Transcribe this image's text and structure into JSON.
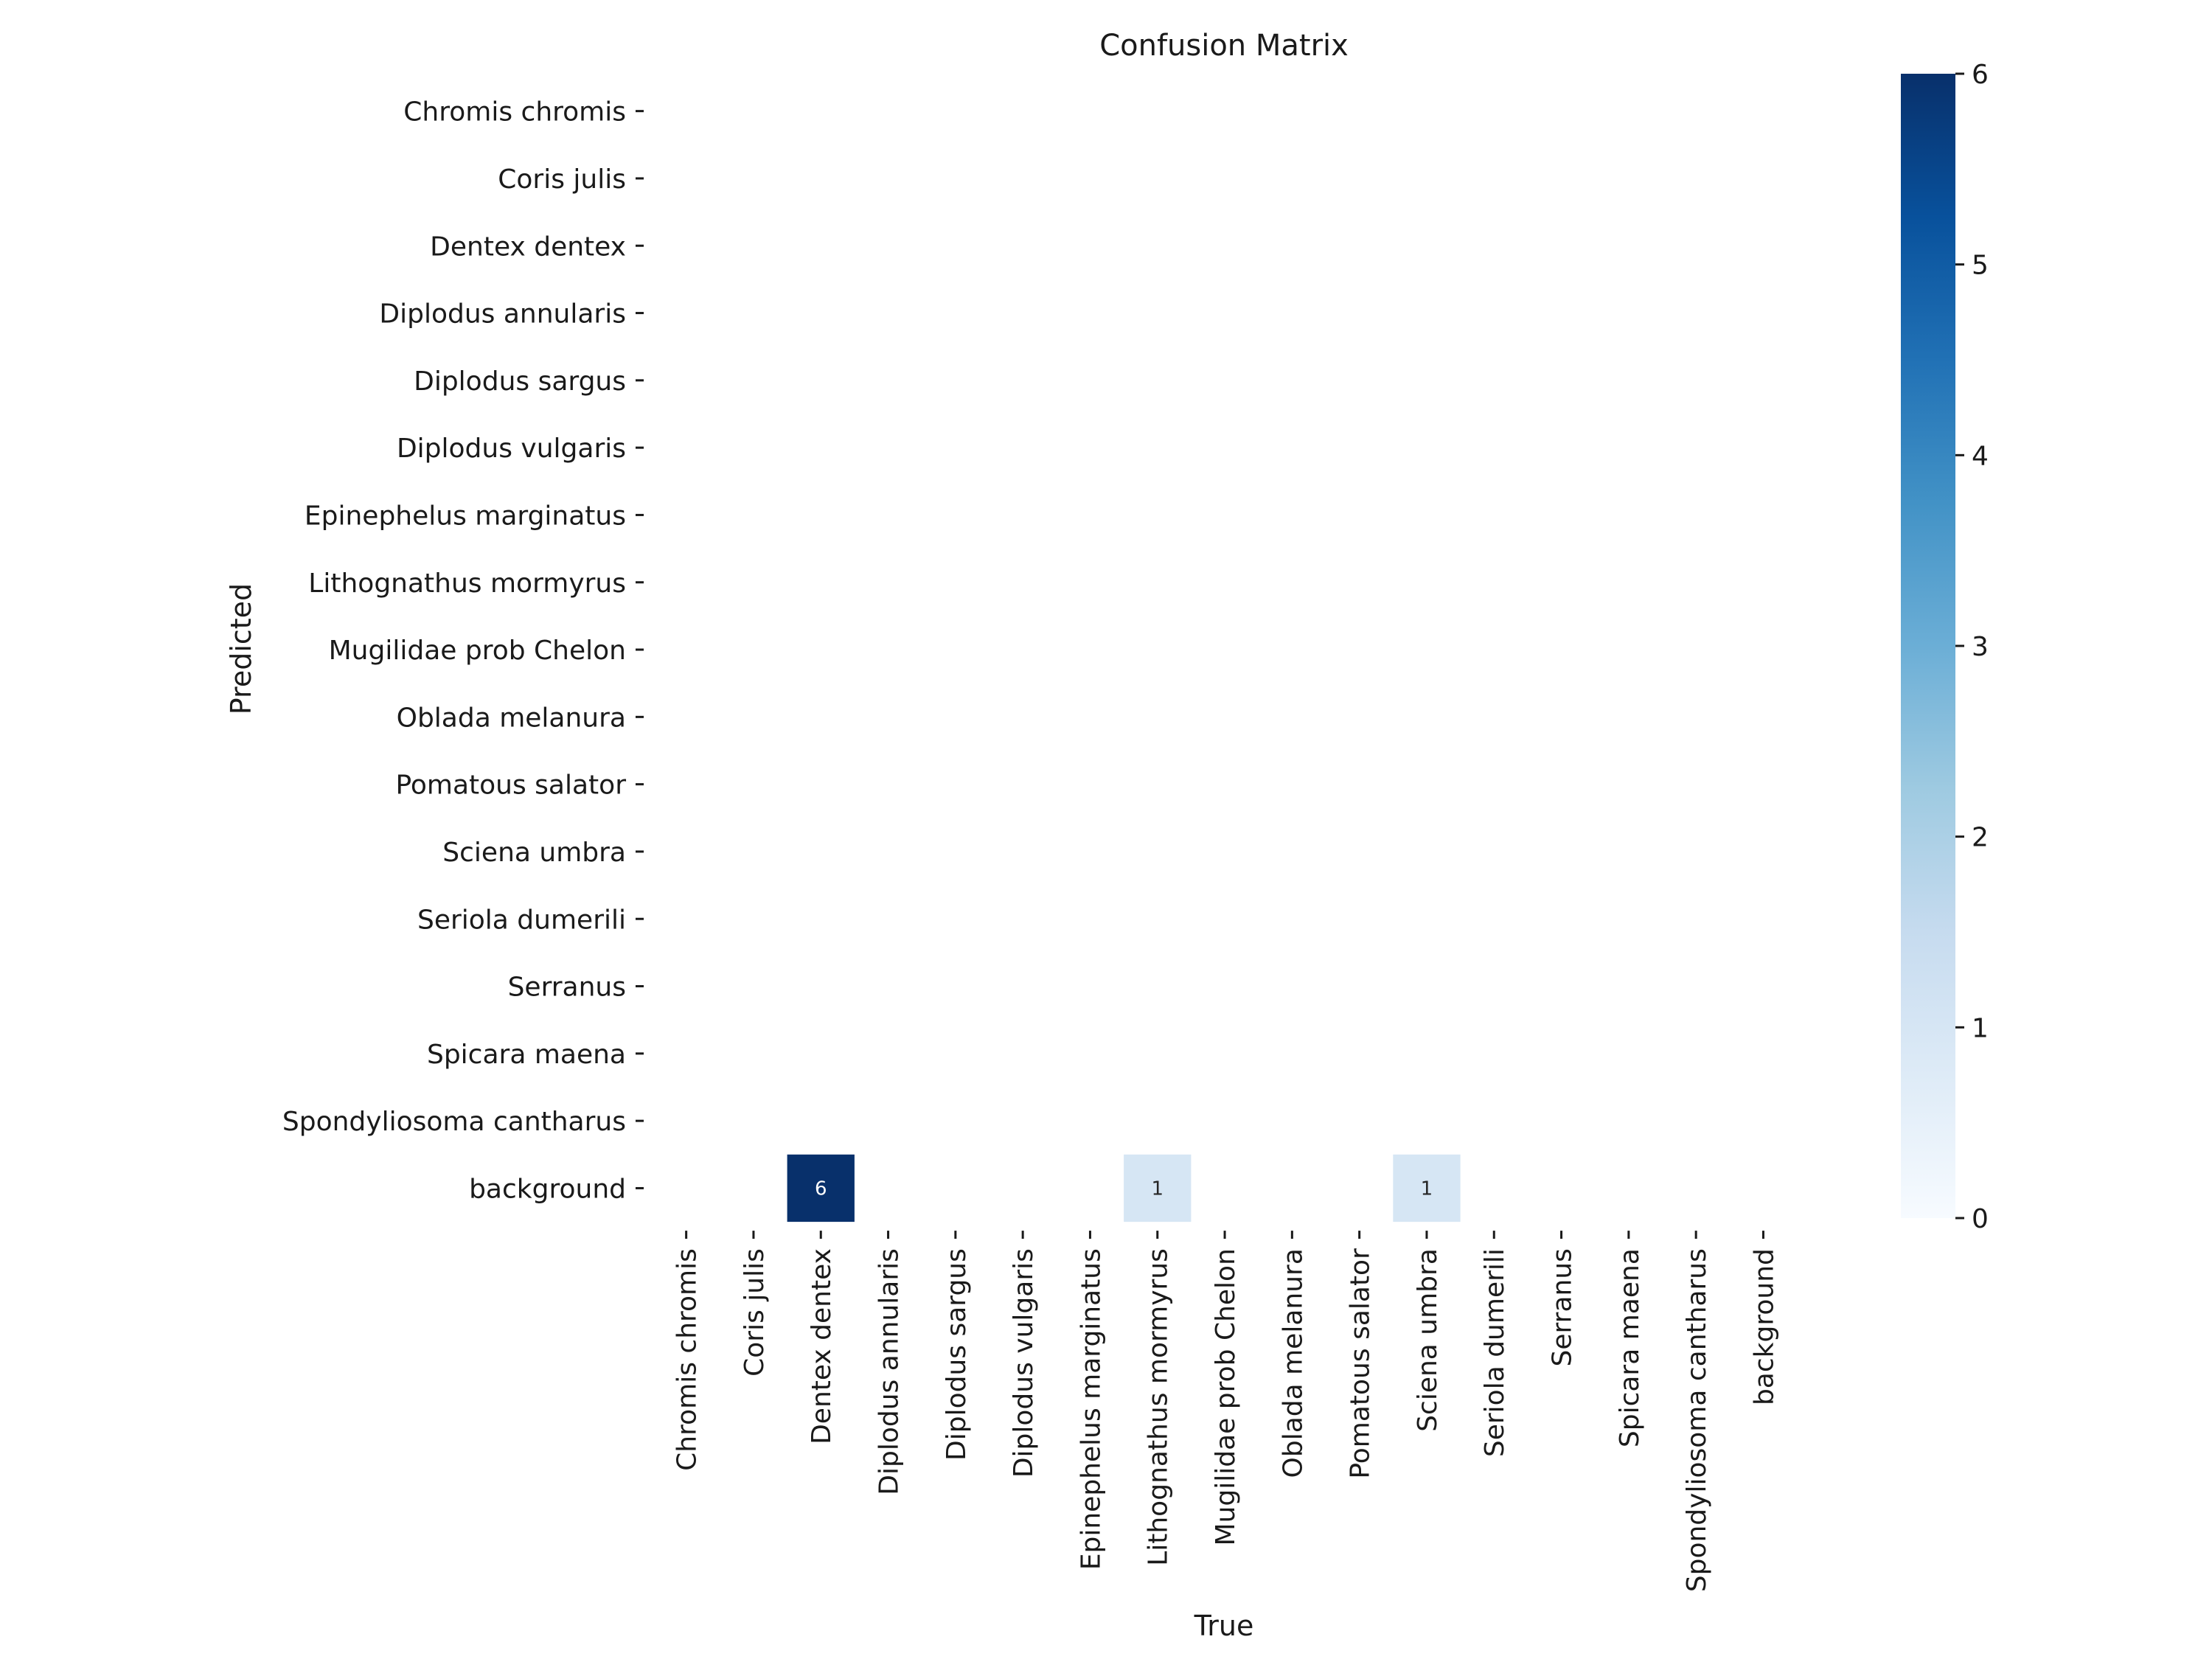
{
  "chart_data": {
    "type": "heatmap",
    "title": "Confusion Matrix",
    "xlabel": "True",
    "ylabel": "Predicted",
    "rows": [
      "Chromis chromis",
      "Coris julis",
      "Dentex dentex",
      "Diplodus annularis",
      "Diplodus sargus",
      "Diplodus vulgaris",
      "Epinephelus marginatus",
      "Lithognathus mormyrus",
      "Mugilidae prob Chelon",
      "Oblada melanura",
      "Pomatous salator",
      "Sciena umbra",
      "Seriola dumerili",
      "Serranus",
      "Spicara maena",
      "Spondyliosoma cantharus",
      "background"
    ],
    "columns": [
      "Chromis chromis",
      "Coris julis",
      "Dentex dentex",
      "Diplodus annularis",
      "Diplodus sargus",
      "Diplodus vulgaris",
      "Epinephelus marginatus",
      "Lithognathus mormyrus",
      "Mugilidae prob Chelon",
      "Oblada melanura",
      "Pomatous salator",
      "Sciena umbra",
      "Seriola dumerili",
      "Serranus",
      "Spicara maena",
      "Spondyliosoma cantharus",
      "background"
    ],
    "cells": [
      {
        "row": "background",
        "column": "Dentex dentex",
        "value": 6
      },
      {
        "row": "background",
        "column": "Lithognathus mormyrus",
        "value": 1
      },
      {
        "row": "background",
        "column": "Sciena umbra",
        "value": 1
      }
    ],
    "colorbar": {
      "colormap": "Blues",
      "min": 0,
      "max": 6,
      "ticks": [
        "0",
        "1",
        "2",
        "3",
        "4",
        "5",
        "6"
      ]
    }
  }
}
